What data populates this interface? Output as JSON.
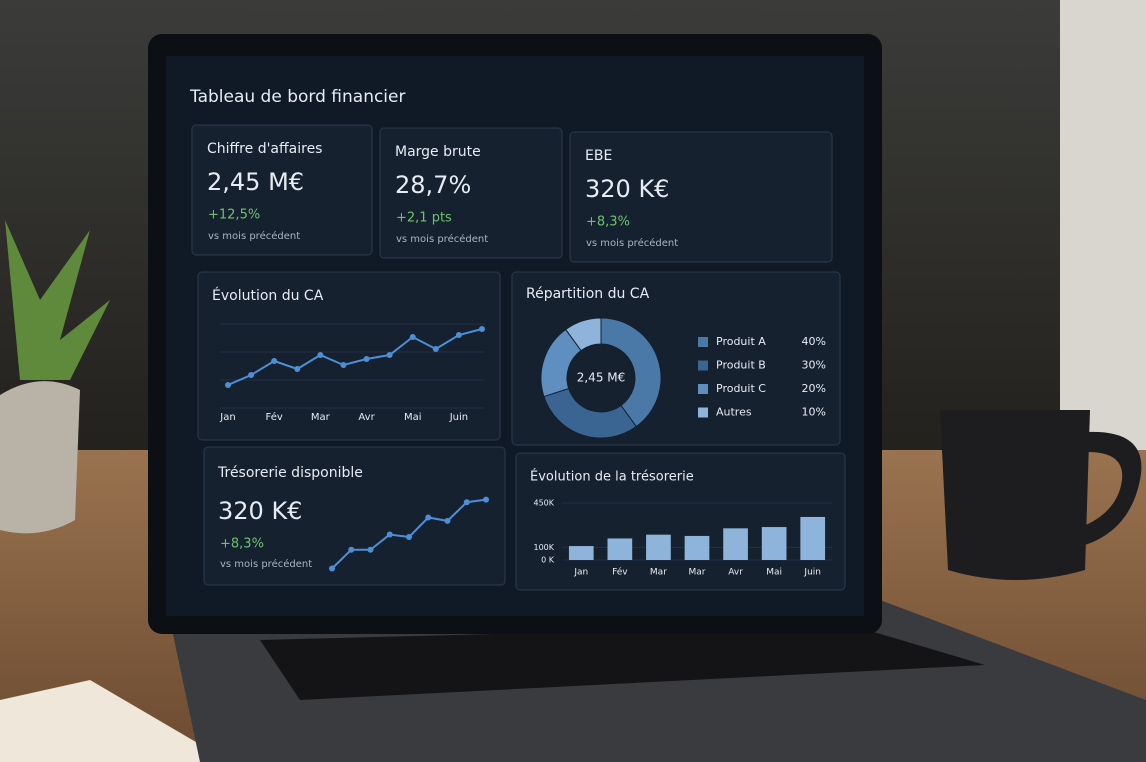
{
  "dashboard": {
    "title": "Tableau de bord financier",
    "kpis": [
      {
        "label": "Chiffre d'affaires",
        "value": "2,45 M€",
        "change": "+12,5%",
        "note": "vs mois précédent"
      },
      {
        "label": "Marge brute",
        "value": "28,7%",
        "change": "+2,1 pts",
        "note": "vs mois précédent"
      },
      {
        "label": "EBE",
        "value": "320 K€",
        "change": "+8,3%",
        "note": "vs mois précédent"
      }
    ]
  },
  "chart_data": [
    {
      "type": "line",
      "title": "Évolution du CA",
      "categories": [
        "Jan",
        null,
        "Fév",
        null,
        "Mar",
        null,
        "Avr",
        null,
        "Mai",
        null,
        "Juin",
        null
      ],
      "values": [
        0.6,
        1.1,
        1.8,
        1.4,
        2.1,
        1.6,
        1.9,
        2.1,
        3.0,
        2.4,
        3.1,
        3.4
      ],
      "ylim": [
        0,
        4
      ],
      "color": "#4d8fd6"
    },
    {
      "type": "pie",
      "title": "Répartition du CA",
      "donut": true,
      "center_label": "2,45 M€",
      "categories": [
        "Produit A",
        "Produit B",
        "Produit C",
        "Autres"
      ],
      "values": [
        40,
        30,
        20,
        10
      ],
      "value_labels": [
        "40%",
        "30%",
        "20%",
        "10%"
      ],
      "colors": [
        "#4a79a8",
        "#3a6592",
        "#5f8fc0",
        "#8fb4dc"
      ]
    },
    {
      "type": "sparkline",
      "title": "Trésorerie disponible",
      "headline": "320 K€",
      "change": "+8,3%",
      "note": "vs mois précédent",
      "values": [
        10,
        32,
        32,
        50,
        47,
        70,
        66,
        88,
        91
      ],
      "ylim": [
        0,
        100
      ],
      "color": "#4d8fd6"
    },
    {
      "type": "bar",
      "title": "Évolution de la trésorerie",
      "categories": [
        "Jan",
        "Fév",
        "Mar",
        "Mar",
        "Avr",
        "Mai",
        "Juin"
      ],
      "values": [
        110000,
        170000,
        200000,
        190000,
        250000,
        260000,
        340000
      ],
      "ylim": [
        0,
        450000
      ],
      "yticks": [
        {
          "value": 450000,
          "label": "450K"
        },
        {
          "value": 100000,
          "label": "100K"
        },
        {
          "value": 0,
          "label": "0 K"
        }
      ],
      "color": "#8fb4dc"
    }
  ]
}
